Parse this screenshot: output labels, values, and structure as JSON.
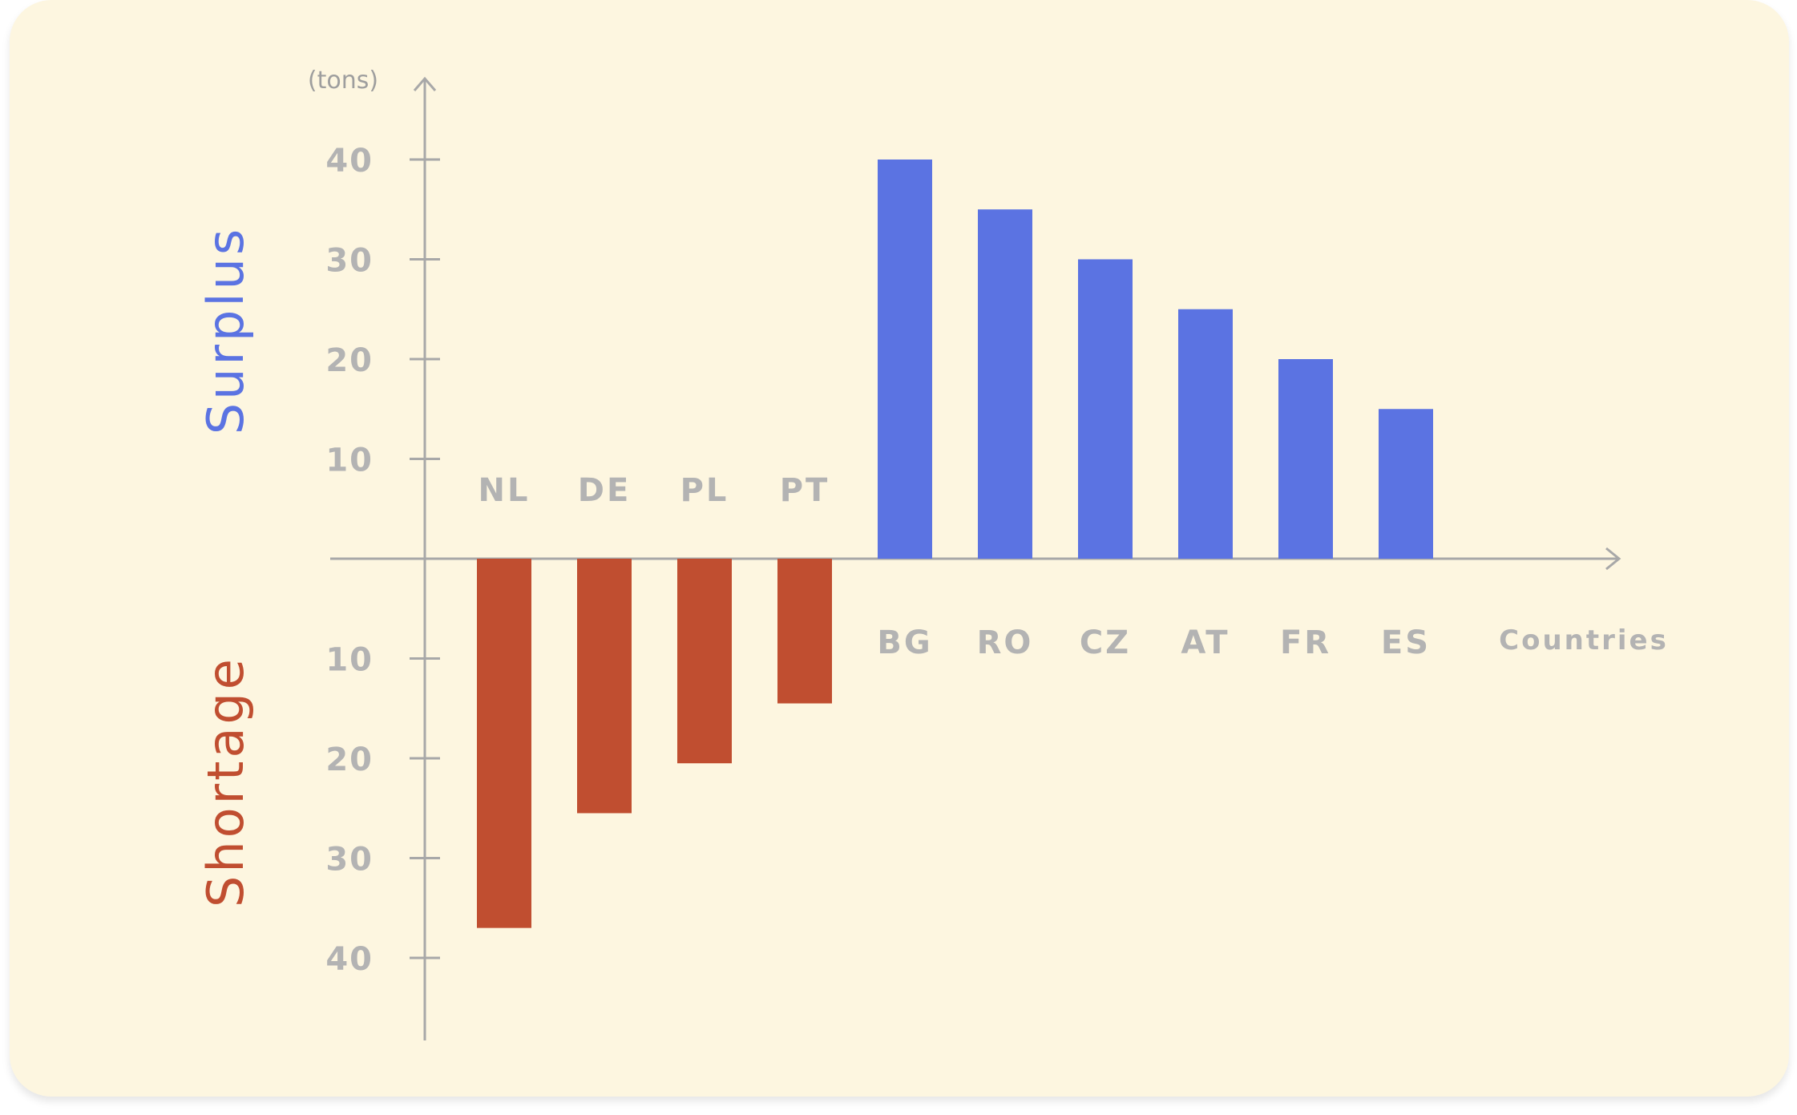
{
  "chart_data": {
    "type": "bar",
    "unit_label": "(tons)",
    "x_axis_label": "Countries",
    "surplus_label": "Surplus",
    "shortage_label": "Shortage",
    "colors": {
      "surplus": "#5b73e2",
      "shortage": "#c04e30",
      "axis": "#a8a8a8",
      "text": "#b3b3b3",
      "background": "#fdf6e0"
    },
    "ylim": [
      -40,
      40
    ],
    "y_ticks_surplus": [
      "10",
      "20",
      "30",
      "40"
    ],
    "y_ticks_shortage": [
      "10",
      "20",
      "30",
      "40"
    ],
    "categories": [
      "NL",
      "DE",
      "PL",
      "PT",
      "BG",
      "RO",
      "CZ",
      "AT",
      "FR",
      "ES"
    ],
    "values": [
      -37,
      -25.5,
      -20.5,
      -14.5,
      40,
      35,
      30,
      25,
      20,
      15
    ]
  }
}
